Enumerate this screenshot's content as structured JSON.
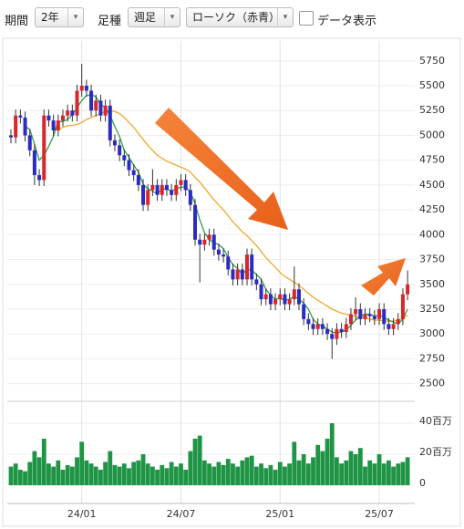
{
  "toolbar": {
    "period_label": "期間",
    "period": "2年",
    "bar_type_label": "足種",
    "bar_type": "週足",
    "chart_style": "ローソク（赤青）",
    "data_display": "データ表示"
  },
  "chart_data": {
    "type": "candlestick",
    "categories": [
      null,
      null,
      null,
      null,
      null,
      null,
      null,
      null,
      null,
      null,
      null,
      null,
      null,
      null,
      null,
      "24/01",
      null,
      null,
      null,
      null,
      null,
      null,
      null,
      null,
      null,
      null,
      null,
      null,
      null,
      null,
      null,
      null,
      null,
      null,
      null,
      null,
      "24/07",
      null,
      null,
      null,
      null,
      null,
      null,
      null,
      null,
      null,
      null,
      null,
      null,
      null,
      null,
      null,
      null,
      null,
      null,
      null,
      null,
      "25/01",
      null,
      null,
      null,
      null,
      null,
      null,
      null,
      null,
      null,
      null,
      null,
      null,
      null,
      null,
      null,
      null,
      null,
      null,
      null,
      null,
      "25/07",
      null,
      null,
      null,
      null,
      null,
      null
    ],
    "open": [
      5000,
      4980,
      5200,
      5180,
      5000,
      4850,
      4600,
      4550,
      5200,
      5150,
      5050,
      5150,
      5200,
      5250,
      5200,
      5450,
      5500,
      5450,
      5250,
      5350,
      5200,
      5300,
      4950,
      4900,
      4800,
      4750,
      4650,
      4600,
      4500,
      4300,
      4450,
      4500,
      4400,
      4500,
      4450,
      4400,
      4500,
      4550,
      4450,
      4300,
      3950,
      3900,
      3950,
      4000,
      3850,
      3800,
      3780,
      3650,
      3550,
      3650,
      3550,
      3800,
      3550,
      3500,
      3350,
      3400,
      3300,
      3350,
      3400,
      3300,
      3350,
      3450,
      3300,
      3150,
      3100,
      3050,
      3100,
      3050,
      3000,
      2950,
      3050,
      3020,
      3100,
      3200,
      3250,
      3150,
      3200,
      3180,
      3150,
      3250,
      3100,
      3050,
      3100,
      3150,
      3400
    ],
    "high": [
      5060,
      5260,
      5260,
      5240,
      5060,
      4910,
      4660,
      5260,
      5260,
      5210,
      5210,
      5260,
      5310,
      5310,
      5510,
      5720,
      5560,
      5510,
      5410,
      5410,
      5360,
      5360,
      5010,
      4960,
      4860,
      4810,
      4710,
      4660,
      4560,
      4510,
      4660,
      4560,
      4560,
      4560,
      4510,
      4560,
      4610,
      4610,
      4510,
      4360,
      4010,
      4010,
      4060,
      4060,
      3910,
      3860,
      3840,
      3710,
      3710,
      3710,
      3860,
      3860,
      3610,
      3560,
      3460,
      3460,
      3410,
      3460,
      3460,
      3410,
      3680,
      3510,
      3360,
      3210,
      3160,
      3160,
      3160,
      3110,
      3060,
      3110,
      3110,
      3160,
      3260,
      3370,
      3310,
      3260,
      3260,
      3240,
      3310,
      3310,
      3160,
      3160,
      3210,
      3460,
      3640
    ],
    "low": [
      4920,
      4920,
      5120,
      4940,
      4790,
      4500,
      4490,
      4490,
      5090,
      4990,
      4990,
      5090,
      5140,
      5140,
      5140,
      5390,
      5390,
      5190,
      5190,
      5140,
      5140,
      4890,
      4840,
      4740,
      4690,
      4590,
      4540,
      4440,
      4240,
      4240,
      4390,
      4340,
      4340,
      4390,
      4340,
      4340,
      4440,
      4390,
      4240,
      3890,
      3520,
      3840,
      3890,
      3790,
      3740,
      3720,
      3590,
      3490,
      3490,
      3490,
      3490,
      3490,
      3440,
      3290,
      3290,
      3240,
      3240,
      3290,
      3240,
      3240,
      3290,
      3240,
      3090,
      3040,
      2990,
      2990,
      2990,
      2940,
      2750,
      2890,
      2960,
      2960,
      3040,
      3140,
      3090,
      3090,
      3120,
      3090,
      3090,
      3040,
      2990,
      2990,
      3040,
      3090,
      3340
    ],
    "close": [
      4980,
      5200,
      5180,
      5000,
      4850,
      4600,
      4550,
      5200,
      5150,
      5050,
      5150,
      5200,
      5250,
      5200,
      5450,
      5500,
      5450,
      5250,
      5350,
      5200,
      5300,
      4950,
      4900,
      4800,
      4750,
      4650,
      4600,
      4500,
      4300,
      4450,
      4500,
      4400,
      4500,
      4450,
      4400,
      4500,
      4550,
      4450,
      4300,
      3950,
      3900,
      3950,
      4000,
      3850,
      3800,
      3780,
      3650,
      3550,
      3650,
      3550,
      3800,
      3550,
      3500,
      3350,
      3400,
      3300,
      3350,
      3400,
      3300,
      3350,
      3450,
      3300,
      3150,
      3100,
      3050,
      3100,
      3050,
      3000,
      2950,
      3050,
      3020,
      3100,
      3200,
      3250,
      3150,
      3200,
      3180,
      3150,
      3250,
      3100,
      3050,
      3100,
      3150,
      3400,
      3500
    ],
    "up_color": "#d8262a",
    "down_color": "#2b2bc4",
    "moving_averages": [
      {
        "color": "#2e9e4e",
        "values": [
          null,
          null,
          null,
          5090,
          5060,
          4910,
          4750,
          4800,
          4890,
          4990,
          5140,
          5140,
          5160,
          5210,
          5280,
          5350,
          5400,
          5410,
          5390,
          5310,
          5280,
          5200,
          5090,
          4990,
          4850,
          4780,
          4700,
          4630,
          4510,
          4460,
          4440,
          4410,
          4460,
          4460,
          4440,
          4460,
          4480,
          4480,
          4430,
          4310,
          4150,
          4020,
          3950,
          3920,
          3900,
          3860,
          3770,
          3700,
          3660,
          3600,
          3650,
          3640,
          3600,
          3550,
          3450,
          3390,
          3350,
          3360,
          3340,
          3350,
          3380,
          3350,
          3310,
          3250,
          3150,
          3100,
          3080,
          3050,
          3020,
          3010,
          3020,
          3040,
          3090,
          3140,
          3180,
          3200,
          3200,
          3180,
          3190,
          3170,
          3140,
          3120,
          3100,
          3150,
          3250
        ]
      },
      {
        "color": "#f0a82a",
        "values": [
          null,
          null,
          null,
          null,
          null,
          null,
          null,
          null,
          null,
          5050,
          5060,
          5080,
          5100,
          5100,
          5110,
          5130,
          5160,
          5180,
          5200,
          5220,
          5240,
          5250,
          5240,
          5220,
          5180,
          5130,
          5080,
          5020,
          4960,
          4900,
          4850,
          4800,
          4770,
          4740,
          4720,
          4700,
          4680,
          4660,
          4630,
          4580,
          4530,
          4470,
          4410,
          4350,
          4300,
          4250,
          4190,
          4130,
          4080,
          4030,
          3990,
          3940,
          3890,
          3830,
          3770,
          3720,
          3670,
          3620,
          3580,
          3550,
          3520,
          3490,
          3450,
          3410,
          3370,
          3340,
          3310,
          3280,
          3250,
          3230,
          3210,
          3200,
          3190,
          3180,
          3170,
          3160,
          3150,
          3140,
          3140,
          3130,
          3130,
          3130,
          3140,
          3160,
          3190
        ]
      }
    ],
    "ylim": [
      2350,
      5950
    ],
    "yticks": [
      2500,
      2750,
      3000,
      3250,
      3500,
      3750,
      4000,
      4250,
      4500,
      4750,
      5000,
      5250,
      5500,
      5750
    ],
    "grid": true,
    "volume": {
      "color": "#1e9444",
      "ylim": [
        0,
        50
      ],
      "yticks": [
        0,
        {
          "value": 20,
          "label": "20百万"
        },
        {
          "value": 40,
          "label": "40百万"
        }
      ],
      "values": [
        12,
        14,
        10,
        9,
        15,
        22,
        18,
        30,
        14,
        12,
        16,
        10,
        13,
        12,
        18,
        28,
        16,
        14,
        12,
        10,
        15,
        22,
        13,
        12,
        14,
        11,
        15,
        16,
        20,
        14,
        12,
        10,
        13,
        11,
        15,
        12,
        14,
        10,
        22,
        30,
        32,
        16,
        14,
        12,
        15,
        13,
        17,
        14,
        12,
        16,
        18,
        19,
        12,
        14,
        11,
        13,
        10,
        15,
        12,
        14,
        28,
        16,
        20,
        14,
        18,
        26,
        22,
        30,
        40,
        18,
        14,
        16,
        22,
        20,
        24,
        12,
        16,
        14,
        20,
        14,
        16,
        12,
        14,
        15,
        18
      ]
    }
  }
}
